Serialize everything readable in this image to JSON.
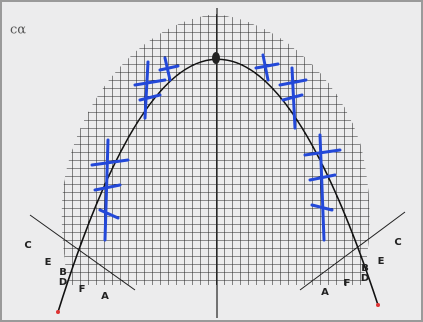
{
  "corner_note": "cα",
  "left_labels": [
    "C",
    "E",
    "B",
    "D",
    "F",
    "A"
  ],
  "right_labels": [
    "A",
    "F",
    "B",
    "D",
    "E",
    "C"
  ]
}
